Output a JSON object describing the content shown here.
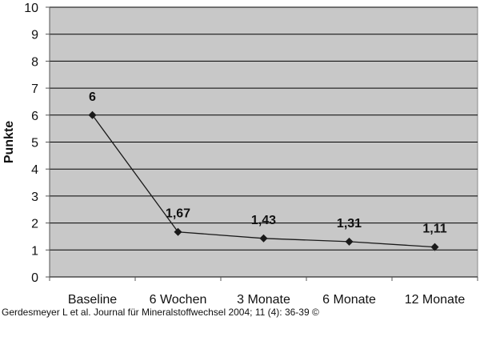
{
  "chart_data": {
    "type": "line",
    "categories": [
      "Baseline",
      "6 Wochen",
      "3 Monate",
      "6 Monate",
      "12 Monate"
    ],
    "series": [
      {
        "values": [
          6,
          1.67,
          1.43,
          1.31,
          1.11
        ]
      }
    ],
    "data_labels": [
      "6",
      "1,67",
      "1,43",
      "1,31",
      "1,11"
    ],
    "ylabel": "Punkte",
    "xlabel": "",
    "ylim": [
      0,
      10
    ],
    "yticks": [
      0,
      1,
      2,
      3,
      4,
      5,
      6,
      7,
      8,
      9,
      10
    ],
    "grid": true,
    "legend": "none",
    "colors": {
      "plot_background": "#c8c8c8",
      "gridline": "#000000",
      "line": "#1a1a1a",
      "marker": "#1a1a1a",
      "text": "#111111"
    }
  },
  "caption": "Gerdesmeyer L et al. Journal für Mineralstoffwechsel 2004; 11 (4): 36-39 ©"
}
